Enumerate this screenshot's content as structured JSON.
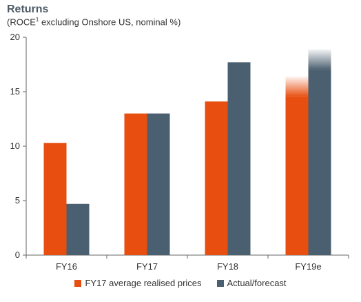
{
  "title": "Returns",
  "subtitle_pre": "(ROCE",
  "subtitle_sup": "1",
  "subtitle_post": " excluding Onshore US, nominal %)",
  "colors": {
    "orange": "#e84e0f",
    "slate": "#4a5f6f",
    "axis": "#555555"
  },
  "chart_data": {
    "type": "bar",
    "title": "Returns",
    "subtitle": "(ROCE1 excluding Onshore US, nominal %)",
    "categories": [
      "FY16",
      "FY17",
      "FY18",
      "FY19e"
    ],
    "series": [
      {
        "name": "FY17 average realised prices",
        "values": [
          10.3,
          13.0,
          14.1,
          16.4
        ],
        "color": "#e84e0f"
      },
      {
        "name": "Actual/forecast",
        "values": [
          4.7,
          13.0,
          17.7,
          18.9
        ],
        "color": "#4a5f6f"
      }
    ],
    "ylim": [
      0,
      20
    ],
    "yticks": [
      0,
      5,
      10,
      15,
      20
    ],
    "grid": false,
    "legend": "bottom",
    "faded_top_category": "FY19e"
  }
}
